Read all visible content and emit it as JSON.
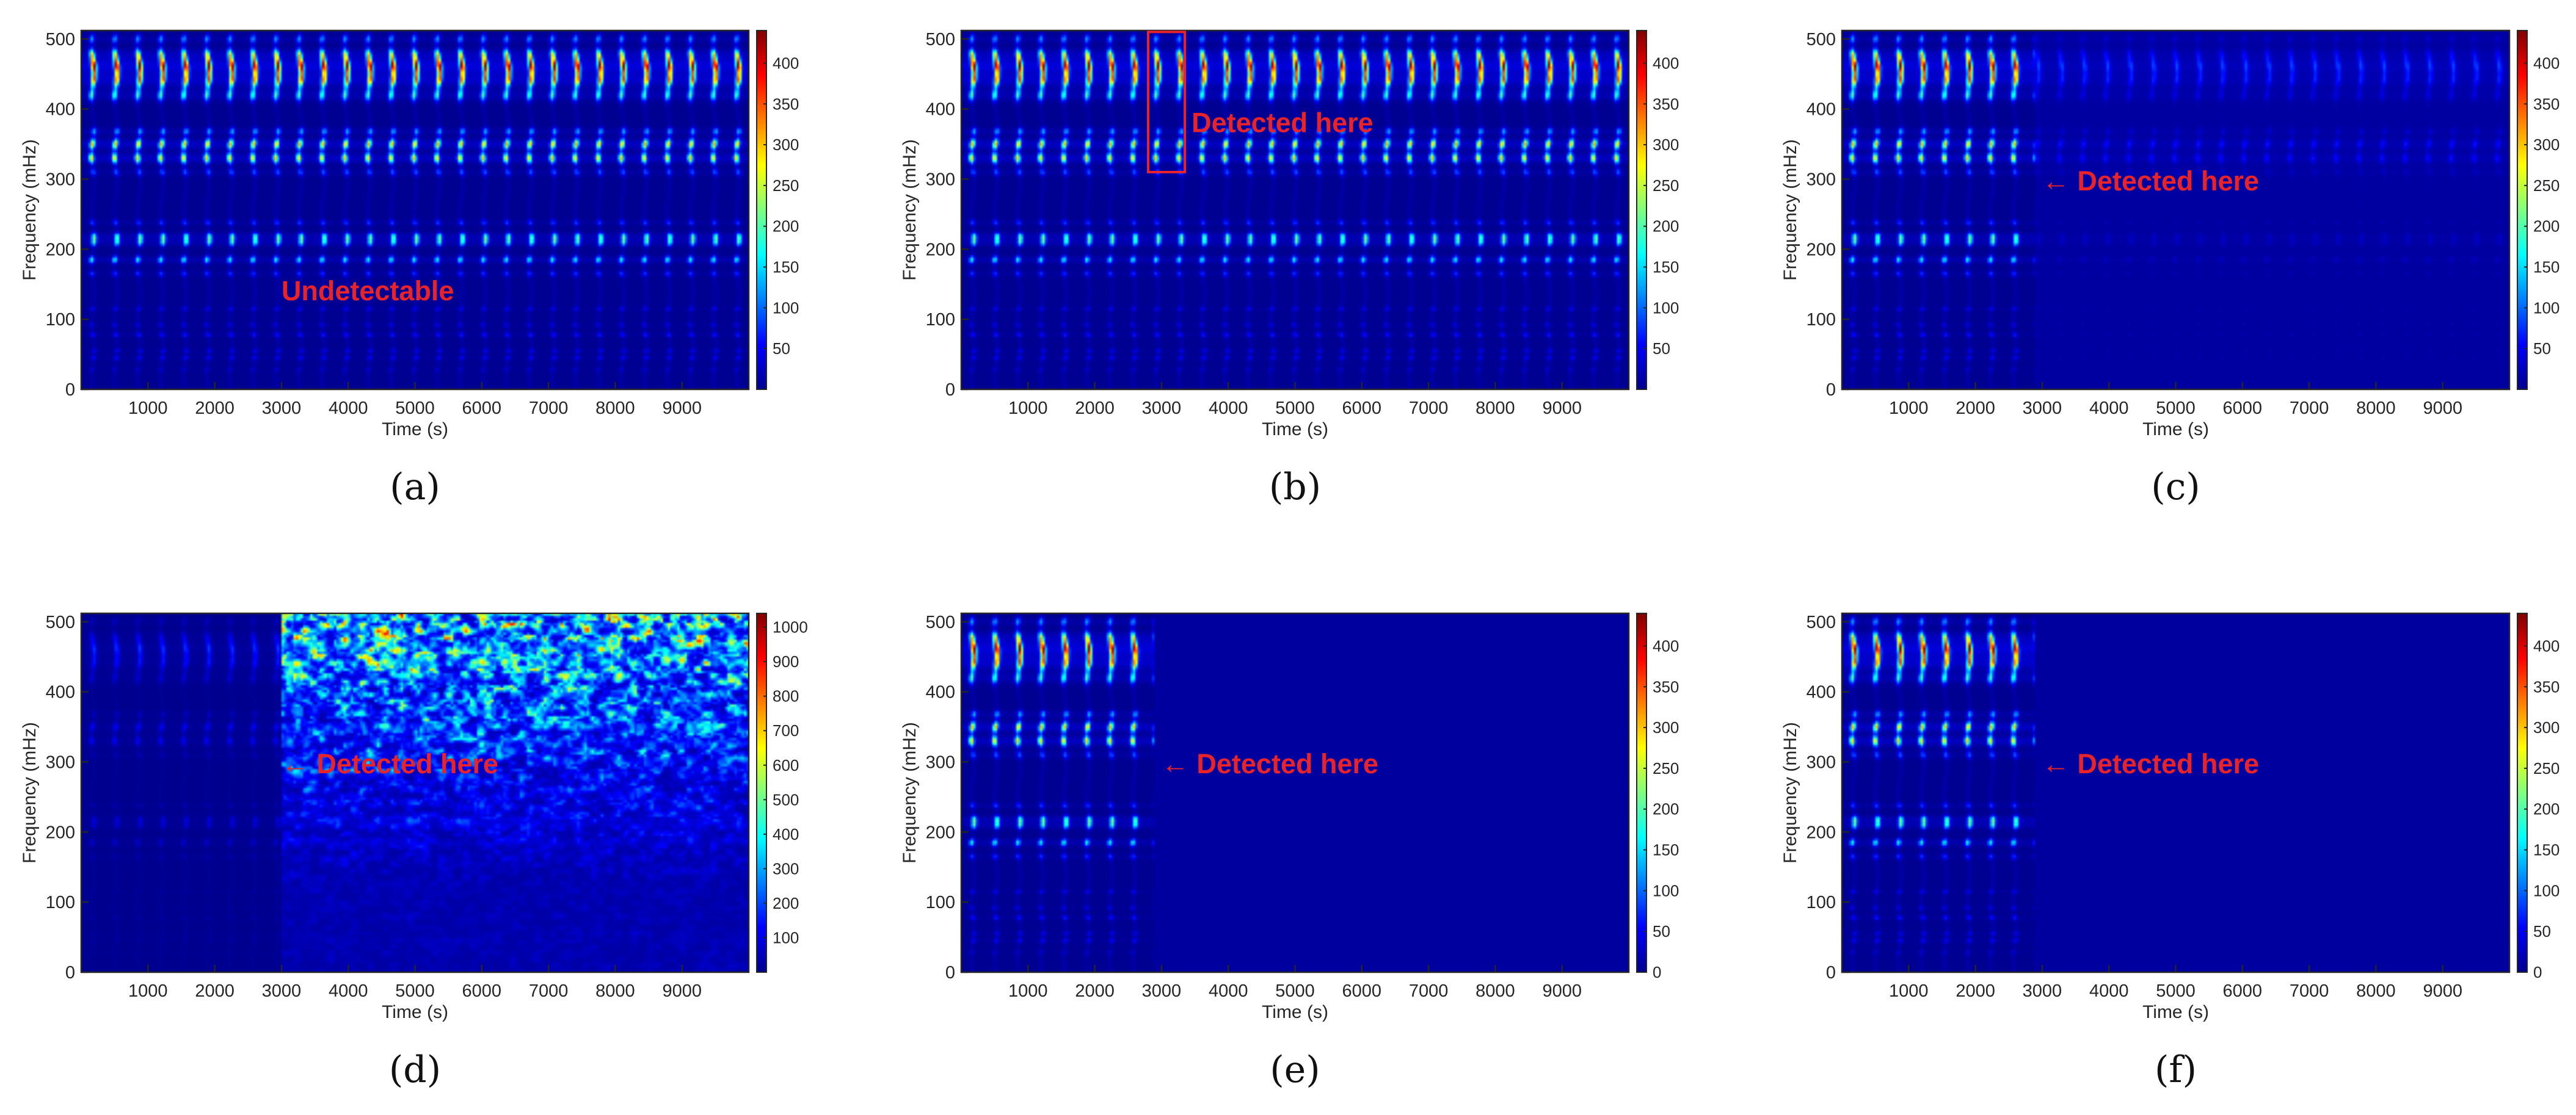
{
  "figure": {
    "palette": {
      "background": "#ffffff",
      "axis": "#262626",
      "annotation": "#e8232a",
      "jet_stops": [
        "#00008f",
        "#0000ff",
        "#00ffff",
        "#ffff00",
        "#ff0000",
        "#800000"
      ]
    }
  },
  "chart_data": [
    {
      "panel_label": "(a)",
      "type": "heatmap",
      "xlabel": "Time (s)",
      "ylabel": "Frequency (mHz)",
      "xticks": [
        1000,
        2000,
        3000,
        4000,
        5000,
        6000,
        7000,
        8000,
        9000
      ],
      "yticks": [
        0,
        100,
        200,
        300,
        400,
        500
      ],
      "xlim": [
        0,
        10000
      ],
      "ylim": [
        0,
        512
      ],
      "colorbar_ticks": [
        50,
        100,
        150,
        200,
        250,
        300,
        350,
        400
      ],
      "clim": [
        0,
        440
      ],
      "pattern": "periodic",
      "event_time": null,
      "annotation": {
        "text": "Undetectable",
        "arrow": false,
        "box": false,
        "x": 3000,
        "y": 140
      }
    },
    {
      "panel_label": "(b)",
      "type": "heatmap",
      "xlabel": "Time (s)",
      "ylabel": "Frequency (mHz)",
      "xticks": [
        1000,
        2000,
        3000,
        4000,
        5000,
        6000,
        7000,
        8000,
        9000
      ],
      "yticks": [
        0,
        100,
        200,
        300,
        400,
        500
      ],
      "xlim": [
        0,
        10000
      ],
      "ylim": [
        0,
        512
      ],
      "colorbar_ticks": [
        50,
        100,
        150,
        200,
        250,
        300,
        350,
        400
      ],
      "clim": [
        0,
        440
      ],
      "pattern": "periodic",
      "event_time": 3000,
      "annotation": {
        "text": "Detected here",
        "arrow": false,
        "box": true,
        "box_x": [
          2800,
          3350
        ],
        "box_y": [
          310,
          510
        ],
        "x": 3450,
        "y": 380
      }
    },
    {
      "panel_label": "(c)",
      "type": "heatmap",
      "xlabel": "Time (s)",
      "ylabel": "Frequency (mHz)",
      "xticks": [
        1000,
        2000,
        3000,
        4000,
        5000,
        6000,
        7000,
        8000,
        9000
      ],
      "yticks": [
        0,
        100,
        200,
        300,
        400,
        500
      ],
      "xlim": [
        0,
        10000
      ],
      "ylim": [
        0,
        512
      ],
      "colorbar_ticks": [
        50,
        100,
        150,
        200,
        250,
        300,
        350,
        400
      ],
      "clim": [
        0,
        440
      ],
      "pattern": "faded",
      "event_time": 2900,
      "annotation": {
        "text": "Detected here",
        "arrow": true,
        "box": false,
        "x": 3000,
        "y": 297
      }
    },
    {
      "panel_label": "(d)",
      "type": "heatmap",
      "xlabel": "Time (s)",
      "ylabel": "Frequency (mHz)",
      "xticks": [
        1000,
        2000,
        3000,
        4000,
        5000,
        6000,
        7000,
        8000,
        9000
      ],
      "yticks": [
        0,
        100,
        200,
        300,
        400,
        500
      ],
      "xlim": [
        0,
        10000
      ],
      "ylim": [
        0,
        512
      ],
      "colorbar_ticks": [
        100,
        200,
        300,
        400,
        500,
        600,
        700,
        800,
        900,
        1000
      ],
      "clim": [
        0,
        1040
      ],
      "pattern": "noise",
      "event_time": 3000,
      "annotation": {
        "text": "Detected here",
        "arrow": true,
        "box": false,
        "x": 3000,
        "y": 297
      }
    },
    {
      "panel_label": "(e)",
      "type": "heatmap",
      "xlabel": "Time (s)",
      "ylabel": "Frequency (mHz)",
      "xticks": [
        1000,
        2000,
        3000,
        4000,
        5000,
        6000,
        7000,
        8000,
        9000
      ],
      "yticks": [
        0,
        100,
        200,
        300,
        400,
        500
      ],
      "xlim": [
        0,
        10000
      ],
      "ylim": [
        0,
        512
      ],
      "colorbar_ticks": [
        0,
        50,
        100,
        150,
        200,
        250,
        300,
        350,
        400
      ],
      "clim": [
        0,
        440
      ],
      "pattern": "cutoff",
      "event_time": 2900,
      "annotation": {
        "text": "Detected here",
        "arrow": true,
        "box": false,
        "x": 3000,
        "y": 297
      }
    },
    {
      "panel_label": "(f)",
      "type": "heatmap",
      "xlabel": "Time (s)",
      "ylabel": "Frequency (mHz)",
      "xticks": [
        1000,
        2000,
        3000,
        4000,
        5000,
        6000,
        7000,
        8000,
        9000
      ],
      "yticks": [
        0,
        100,
        200,
        300,
        400,
        500
      ],
      "xlim": [
        0,
        10000
      ],
      "ylim": [
        0,
        512
      ],
      "colorbar_ticks": [
        0,
        50,
        100,
        150,
        200,
        250,
        300,
        350,
        400
      ],
      "clim": [
        0,
        440
      ],
      "pattern": "cutoff",
      "event_time": 2900,
      "annotation": {
        "text": "Detected here",
        "arrow": true,
        "box": false,
        "x": 3000,
        "y": 297
      }
    }
  ]
}
